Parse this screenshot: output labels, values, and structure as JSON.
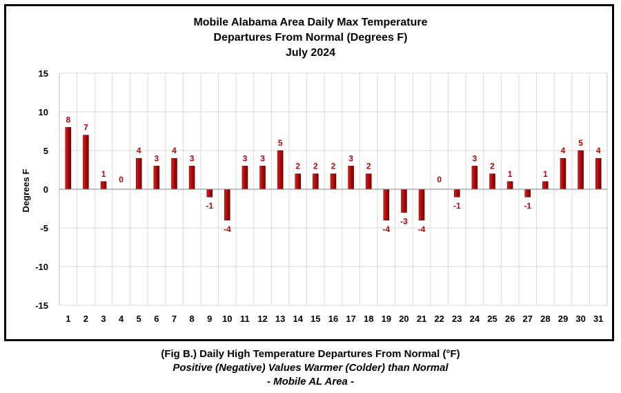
{
  "chart_data": {
    "type": "bar",
    "title": [
      "Mobile Alabama Area Daily Max Temperature",
      "Departures From Normal (Degrees F)",
      "July 2024"
    ],
    "xlabel": "",
    "ylabel": "Degrees F",
    "ylim": [
      -15,
      15
    ],
    "yticks": [
      15,
      10,
      5,
      0,
      -5,
      -10,
      -15
    ],
    "grid": true,
    "bar_color": "#c00000",
    "label_color": "#c00000",
    "categories": [
      "1",
      "2",
      "3",
      "4",
      "5",
      "6",
      "7",
      "8",
      "9",
      "10",
      "11",
      "12",
      "13",
      "14",
      "15",
      "16",
      "17",
      "18",
      "19",
      "20",
      "21",
      "22",
      "23",
      "24",
      "25",
      "26",
      "27",
      "28",
      "29",
      "30",
      "31"
    ],
    "values": [
      8,
      7,
      1,
      0,
      4,
      3,
      4,
      3,
      -1,
      -4,
      3,
      3,
      5,
      2,
      2,
      2,
      3,
      2,
      -4,
      -3,
      -4,
      0,
      -1,
      3,
      2,
      1,
      -1,
      1,
      4,
      5,
      4
    ]
  },
  "caption": {
    "line1": "(Fig B.) Daily High Temperature Departures From Normal (°F)",
    "line2": "Positive (Negative) Values Warmer (Colder) than Normal",
    "line3": "- Mobile AL Area -"
  }
}
